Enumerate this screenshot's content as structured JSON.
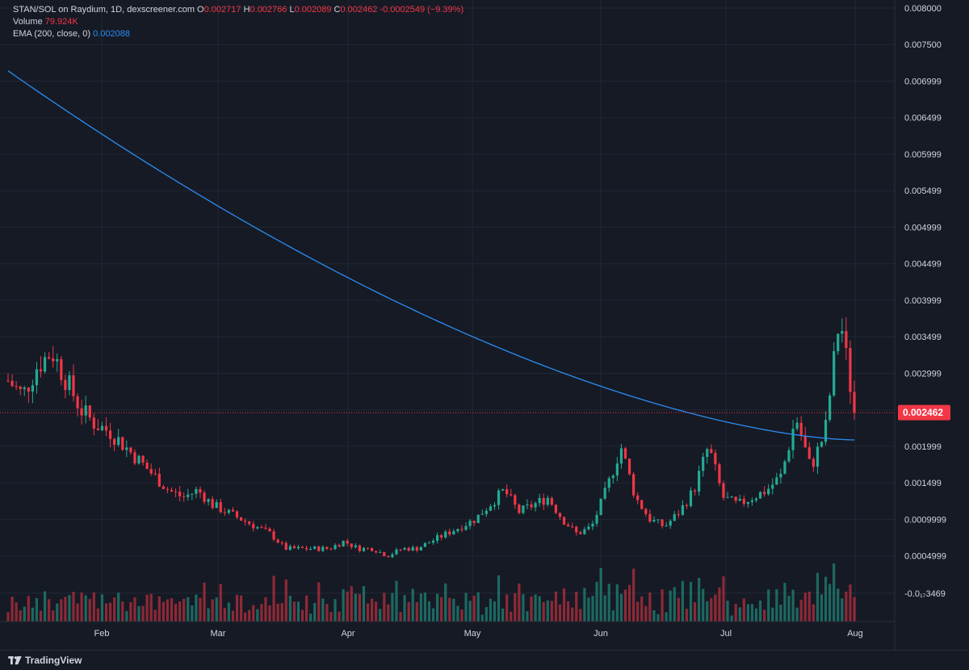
{
  "header": {
    "symbol": "STAN/SOL on Raydium, 1D, dexscreener.com",
    "o_label": "O",
    "o_value": "0.002717",
    "h_label": "H",
    "h_value": "0.002766",
    "l_label": "L",
    "l_value": "0.002089",
    "c_label": "C",
    "c_value": "0.002462",
    "change": "-0.0002549 (−9.39%)",
    "volume_label": "Volume",
    "volume_value": "79.924K",
    "ema_label": "EMA (200, close, 0)",
    "ema_value": "0.002088"
  },
  "footer": {
    "brand": "TradingView"
  },
  "colors": {
    "up": "#22ab94",
    "down": "#f23645",
    "ema": "#2a8df2",
    "background": "#161a25",
    "grid": "#232734",
    "axis_text": "#d1d4dc"
  },
  "chart_data": {
    "type": "candlestick",
    "title": "STAN/SOL on Raydium, 1D, dexscreener.com",
    "y_ticks": [
      "0.008000",
      "0.007500",
      "0.006999",
      "0.006499",
      "0.005999",
      "0.005499",
      "0.004999",
      "0.004499",
      "0.003999",
      "0.003499",
      "0.002999",
      "0.002499",
      "0.001999",
      "0.001499",
      "0.0009999",
      "0.0004999",
      "-0.0₁₇3469"
    ],
    "y_range": [
      -0.0002,
      0.008
    ],
    "x_ticks": [
      "Feb",
      "Mar",
      "Apr",
      "May",
      "Jun",
      "Jul",
      "Aug"
    ],
    "current_price": "0.002462",
    "series": [
      {
        "name": "STAN/SOL",
        "kind": "ohlc",
        "sampled_closes": [
          0.0029,
          0.0027,
          0.0031,
          0.0033,
          0.0029,
          0.0025,
          0.0023,
          0.0022,
          0.002,
          0.0018,
          0.0016,
          0.0014,
          0.0013,
          0.0014,
          0.0012,
          0.0011,
          0.001,
          0.0009,
          0.0008,
          0.0006,
          0.0006,
          0.0006,
          0.0006,
          0.0007,
          0.0006,
          0.0006,
          0.0005,
          0.0006,
          0.0006,
          0.0007,
          0.0008,
          0.0009,
          0.001,
          0.0012,
          0.0014,
          0.0011,
          0.0012,
          0.0013,
          0.001,
          0.0008,
          0.0009,
          0.0014,
          0.002,
          0.0013,
          0.001,
          0.0009,
          0.0011,
          0.0014,
          0.002,
          0.0013,
          0.0012,
          0.0013,
          0.0014,
          0.0016,
          0.0024,
          0.0017,
          0.0022,
          0.0038,
          0.002462
        ]
      },
      {
        "name": "Volume",
        "kind": "volume"
      },
      {
        "name": "EMA (200, close, 0)",
        "kind": "line",
        "start": 0.00714,
        "end": 0.002088
      }
    ]
  }
}
